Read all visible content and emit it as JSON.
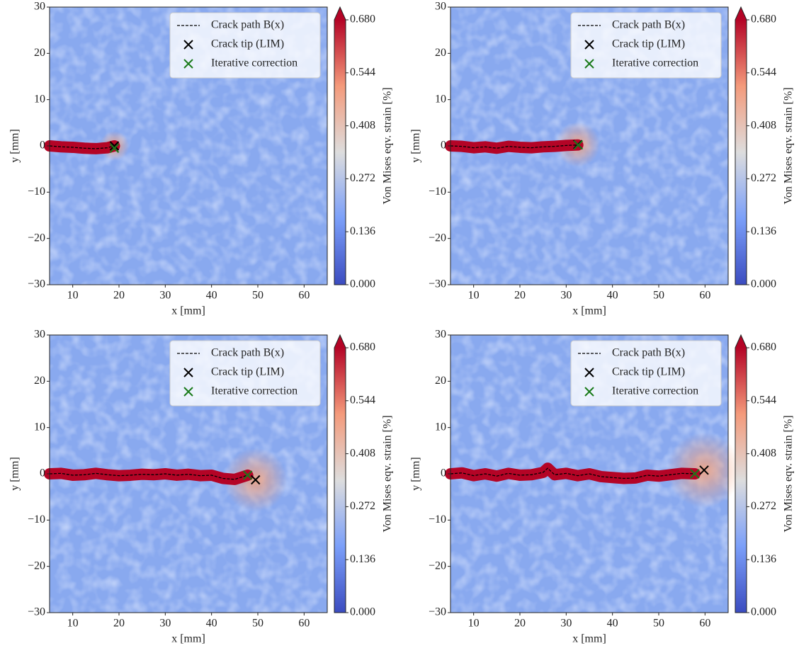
{
  "chart_data": [
    {
      "type": "field",
      "xlabel": "x [mm]",
      "ylabel": "y [mm]",
      "colorbar_label": "Von Mises eqv. strain [%]",
      "colormap": "coolwarm",
      "xlim": [
        5,
        65
      ],
      "ylim": [
        -30,
        30
      ],
      "xticks": [
        10,
        20,
        30,
        40,
        50,
        60
      ],
      "yticks": [
        {
          "value": -30,
          "label": "−30"
        },
        {
          "value": -20,
          "label": "−20"
        },
        {
          "value": -10,
          "label": "−10"
        },
        0,
        10,
        20,
        30
      ],
      "clim": [
        0,
        0.68
      ],
      "cticks": [
        {
          "value": 0,
          "label": "0.000"
        },
        0.136,
        0.272,
        0.408,
        0.544,
        {
          "value": 0.68,
          "label": "0.680"
        }
      ],
      "series": [
        {
          "name": "Crack path B(x)",
          "color": "#000000",
          "x": [
            5,
            7.5,
            10,
            12.5,
            15,
            17.5,
            19
          ],
          "values": [
            0,
            -0.2,
            -0.3,
            -0.5,
            -0.6,
            -0.4,
            0
          ]
        },
        {
          "name": "Crack tip (LIM)",
          "color": "#000000",
          "x": [
            19
          ],
          "values": [
            0
          ]
        },
        {
          "name": "Iterative correction",
          "color": "#1a7a1a",
          "x": [
            19
          ],
          "values": [
            -0.5
          ]
        }
      ]
    },
    {
      "type": "field",
      "xlabel": "x [mm]",
      "ylabel": "y [mm]",
      "colorbar_label": "Von Mises eqv. strain [%]",
      "colormap": "coolwarm",
      "xlim": [
        5,
        65
      ],
      "ylim": [
        -30,
        30
      ],
      "xticks": [
        10,
        20,
        30,
        40,
        50,
        60
      ],
      "yticks": [
        {
          "value": -30,
          "label": "−30"
        },
        {
          "value": -20,
          "label": "−20"
        },
        {
          "value": -10,
          "label": "−10"
        },
        0,
        10,
        20,
        30
      ],
      "clim": [
        0,
        0.68
      ],
      "cticks": [
        {
          "value": 0,
          "label": "0.000"
        },
        0.136,
        0.272,
        0.408,
        0.544,
        {
          "value": 0.68,
          "label": "0.680"
        }
      ],
      "series": [
        {
          "name": "Crack path B(x)",
          "color": "#000000",
          "x": [
            5,
            7.5,
            10,
            12.5,
            15,
            17.5,
            20,
            22.5,
            25,
            27.5,
            30,
            32.5
          ],
          "values": [
            0,
            -0.1,
            -0.4,
            -0.2,
            -0.5,
            -0.1,
            -0.3,
            -0.4,
            -0.2,
            -0.1,
            0.1,
            0.2
          ]
        },
        {
          "name": "Crack tip (LIM)",
          "color": "#000000",
          "x": [
            32.5
          ],
          "values": [
            0.3
          ]
        },
        {
          "name": "Iterative correction",
          "color": "#1a7a1a",
          "x": [
            32.6
          ],
          "values": [
            0.2
          ]
        }
      ]
    },
    {
      "type": "field",
      "xlabel": "x [mm]",
      "ylabel": "y [mm]",
      "colorbar_label": "Von Mises eqv. strain [%]",
      "colormap": "coolwarm",
      "xlim": [
        5,
        65
      ],
      "ylim": [
        -30,
        30
      ],
      "xticks": [
        10,
        20,
        30,
        40,
        50,
        60
      ],
      "yticks": [
        {
          "value": -30,
          "label": "−30"
        },
        {
          "value": -20,
          "label": "−20"
        },
        {
          "value": -10,
          "label": "−10"
        },
        0,
        10,
        20,
        30
      ],
      "clim": [
        0,
        0.68
      ],
      "cticks": [
        {
          "value": 0,
          "label": "0.000"
        },
        0.136,
        0.272,
        0.408,
        0.544,
        {
          "value": 0.68,
          "label": "0.680"
        }
      ],
      "series": [
        {
          "name": "Crack path B(x)",
          "color": "#000000",
          "x": [
            5,
            7.5,
            10,
            12.5,
            15,
            17.5,
            20,
            22.5,
            25,
            27.5,
            30,
            32.5,
            35,
            37.5,
            40,
            42.5,
            45,
            47.8
          ],
          "values": [
            0,
            0.1,
            -0.3,
            -0.2,
            0.1,
            -0.2,
            -0.4,
            -0.3,
            -0.1,
            -0.2,
            0,
            -0.3,
            -0.1,
            -0.4,
            -0.3,
            -1,
            -1.2,
            -0.3
          ]
        },
        {
          "name": "Crack tip (LIM)",
          "color": "#000000",
          "x": [
            49.5
          ],
          "values": [
            -1.3
          ]
        },
        {
          "name": "Iterative correction",
          "color": "#1a7a1a",
          "x": [
            47.8
          ],
          "values": [
            -0.3
          ]
        }
      ]
    },
    {
      "type": "field",
      "xlabel": "x [mm]",
      "ylabel": "y [mm]",
      "colorbar_label": "Von Mises eqv. strain [%]",
      "colormap": "coolwarm",
      "xlim": [
        5,
        65
      ],
      "ylim": [
        -30,
        30
      ],
      "xticks": [
        10,
        20,
        30,
        40,
        50,
        60
      ],
      "yticks": [
        {
          "value": -30,
          "label": "−30"
        },
        {
          "value": -20,
          "label": "−20"
        },
        {
          "value": -10,
          "label": "−10"
        },
        0,
        10,
        20,
        30
      ],
      "clim": [
        0,
        0.68
      ],
      "cticks": [
        {
          "value": 0,
          "label": "0.000"
        },
        0.136,
        0.272,
        0.408,
        0.544,
        {
          "value": 0.68,
          "label": "0.680"
        }
      ],
      "series": [
        {
          "name": "Crack path B(x)",
          "color": "#000000",
          "x": [
            5,
            7.5,
            10,
            12.5,
            15,
            17.5,
            20,
            22.5,
            25,
            26,
            27.5,
            30,
            32.5,
            35,
            37.5,
            40,
            42.5,
            45,
            47.5,
            50,
            52.5,
            55,
            57.8
          ],
          "values": [
            0,
            0.2,
            -0.4,
            0,
            -0.5,
            0.1,
            -0.3,
            -0.2,
            0.3,
            1.2,
            -0.2,
            0.1,
            -0.4,
            0,
            -0.6,
            -0.8,
            -1,
            -0.9,
            -0.3,
            -0.5,
            -0.2,
            0.1,
            0
          ]
        },
        {
          "name": "Crack tip (LIM)",
          "color": "#000000",
          "x": [
            59.8
          ],
          "values": [
            0.8
          ]
        },
        {
          "name": "Iterative correction",
          "color": "#1a7a1a",
          "x": [
            57.8
          ],
          "values": [
            0
          ]
        }
      ]
    }
  ]
}
